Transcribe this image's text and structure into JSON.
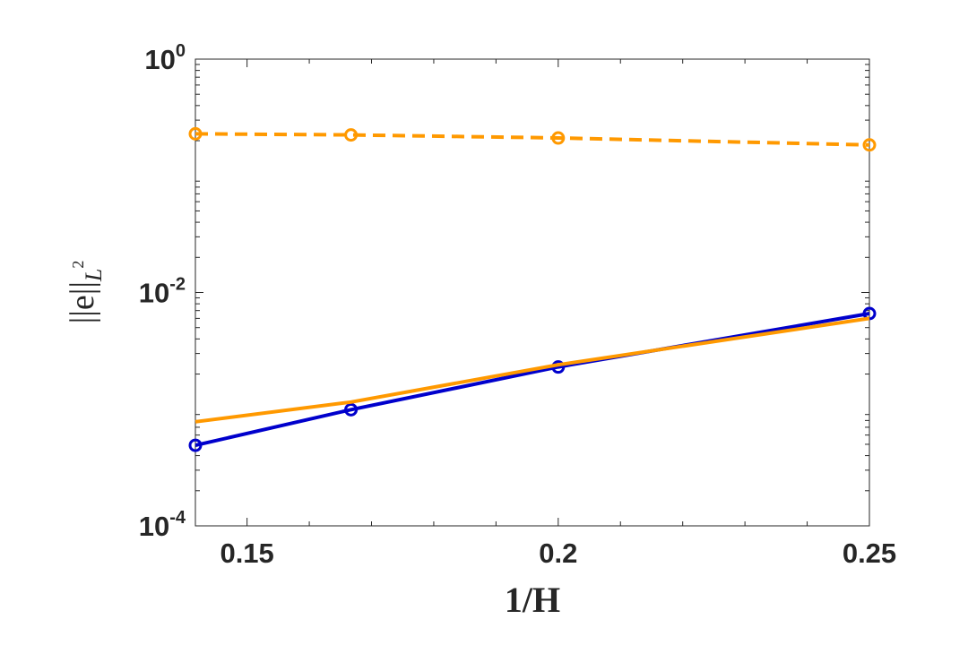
{
  "chart_data": {
    "type": "line",
    "xlabel": "1/H",
    "ylabel": {
      "main": "||e||",
      "sub": "L",
      "sup": "2"
    },
    "x_scale": "linear",
    "y_scale": "log",
    "xlim": [
      0.1417,
      0.25
    ],
    "ylim": [
      0.0001,
      1
    ],
    "x_ticks": [
      {
        "value": 0.15,
        "label": "0.15"
      },
      {
        "value": 0.2,
        "label": "0.2"
      },
      {
        "value": 0.25,
        "label": "0.25"
      }
    ],
    "y_ticks": [
      {
        "value": 0.0001,
        "base": "10",
        "exp": "-4"
      },
      {
        "value": 0.01,
        "base": "10",
        "exp": "-2"
      },
      {
        "value": 1,
        "base": "10",
        "exp": "0"
      }
    ],
    "grid": false,
    "box": true,
    "series": [
      {
        "color": "#0000cc",
        "line": "solid",
        "marker": "circle",
        "x": [
          0.1417,
          0.1667,
          0.2,
          0.25
        ],
        "y": [
          0.00049,
          0.00099,
          0.0023,
          0.0066
        ]
      },
      {
        "color": "#ff9900",
        "line": "dashed",
        "marker": "circle",
        "x": [
          0.1417,
          0.1667,
          0.2,
          0.25
        ],
        "y": [
          0.229,
          0.224,
          0.211,
          0.184
        ]
      },
      {
        "color": "#ff9900",
        "line": "solid",
        "marker": "none",
        "x": [
          0.1417,
          0.1667,
          0.2,
          0.25
        ],
        "y": [
          0.00078,
          0.00115,
          0.0024,
          0.006
        ]
      }
    ]
  }
}
